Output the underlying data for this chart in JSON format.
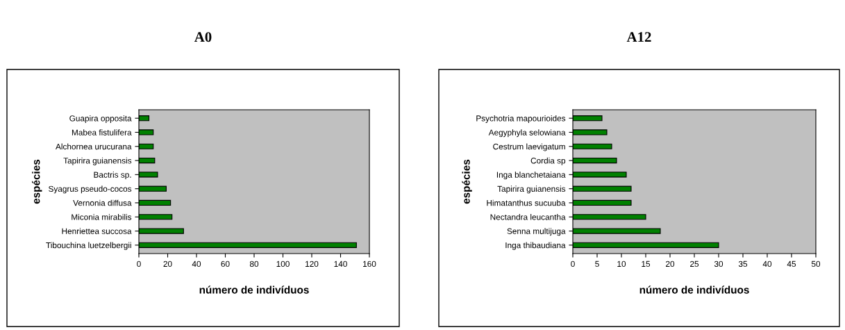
{
  "chart_data": [
    {
      "type": "bar",
      "orientation": "horizontal",
      "title": "A0",
      "xlabel": "número de indivíduos",
      "ylabel": "espécies",
      "categories": [
        "Guapira opposita",
        "Mabea fistulifera",
        "Alchornea urucurana",
        "Tapirira guianensis",
        "Bactris sp.",
        "Syagrus pseudo-cocos",
        "Vernonia diffusa",
        "Miconia mirabilis",
        "Henriettea succosa",
        "Tibouchina luetzelbergii"
      ],
      "values": [
        7,
        10,
        10,
        11,
        13,
        19,
        22,
        23,
        31,
        151
      ],
      "color": "#008000",
      "xlim": [
        0,
        160
      ],
      "xticks": [
        0,
        20,
        40,
        60,
        80,
        100,
        120,
        140,
        160
      ],
      "grid": false
    },
    {
      "type": "bar",
      "orientation": "horizontal",
      "title": "A12",
      "xlabel": "número de indivíduos",
      "ylabel": "espécies",
      "categories": [
        "Psychotria mapourioides",
        "Aegyphyla selowiana",
        "Cestrum laevigatum",
        "Cordia sp",
        "Inga blanchetaiana",
        "Tapirira guianensis",
        "Himatanthus sucuuba",
        "Nectandra leucantha",
        "Senna multijuga",
        "Inga thibaudiana"
      ],
      "values": [
        6,
        7,
        8,
        9,
        11,
        12,
        12,
        15,
        18,
        30
      ],
      "color": "#008000",
      "xlim": [
        0,
        50
      ],
      "xticks": [
        0,
        5,
        10,
        15,
        20,
        25,
        30,
        35,
        40,
        45,
        50
      ],
      "grid": false
    }
  ]
}
